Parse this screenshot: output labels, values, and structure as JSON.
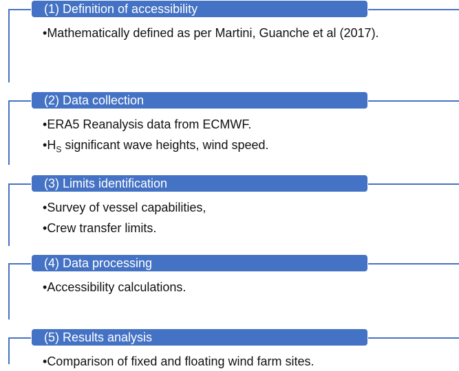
{
  "bullet": "•",
  "sections": [
    {
      "title": "(1) Definition of accessibility",
      "items": [
        "Mathematically defined as per Martini, Guanche et al (2017)."
      ]
    },
    {
      "title": "(2) Data collection",
      "items": [
        "ERA5 Reanalysis data from ECMWF.",
        {
          "main": "H",
          "sub": "S",
          "rest": " significant wave heights, wind speed."
        }
      ]
    },
    {
      "title": "(3) Limits identification",
      "items": [
        "Survey of vessel capabilities,",
        "Crew transfer limits."
      ]
    },
    {
      "title": "(4) Data processing",
      "items": [
        "Accessibility calculations."
      ]
    },
    {
      "title": "(5) Results analysis",
      "items": [
        "Comparison of fixed and floating wind farm sites."
      ]
    }
  ]
}
